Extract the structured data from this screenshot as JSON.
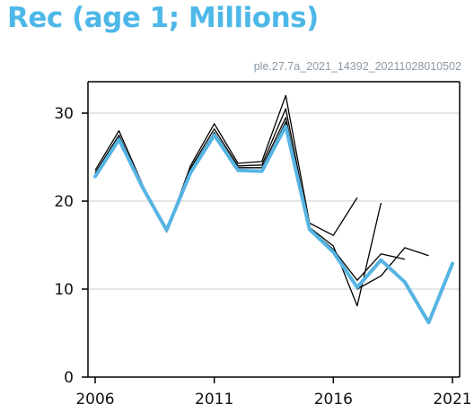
{
  "page": {
    "title": "Rec (age 1; Millions)",
    "subtitle": "ple.27.7a_2021_14392_20211028010502"
  },
  "colors": {
    "title": "#4db8e8",
    "subtitle": "#8b9aa6",
    "main_line": "#56b4e3",
    "retro_lines": "#000000",
    "grid": "#cccccc",
    "axis": "#000000"
  },
  "chart_data": {
    "type": "line",
    "title": "Rec (age 1; Millions)",
    "annotation": "ple.27.7a_2021_14392_20211028010502",
    "xlim": [
      2006,
      2021
    ],
    "ylim": [
      0,
      32
    ],
    "x_ticks": [
      2006,
      2011,
      2016,
      2021
    ],
    "y_ticks": [
      0,
      10,
      20,
      30
    ],
    "grid": "horizontal",
    "main_series": {
      "x": [
        2006,
        2007,
        2008,
        2009,
        2010,
        2011,
        2012,
        2013,
        2014,
        2015,
        2016,
        2017,
        2018,
        2019,
        2020,
        2021
      ],
      "y": [
        22.8,
        27.0,
        21.5,
        16.7,
        23.2,
        27.5,
        23.5,
        23.4,
        28.5,
        16.8,
        14.2,
        10.2,
        13.3,
        10.8,
        6.2,
        12.9
      ]
    },
    "retro_series": [
      {
        "x": [
          2006,
          2007,
          2008,
          2009,
          2010,
          2011,
          2012,
          2013,
          2014,
          2015,
          2016,
          2017
        ],
        "y": [
          23.5,
          28.0,
          21.8,
          16.5,
          24.0,
          28.8,
          24.3,
          24.5,
          32.0,
          17.5,
          16.1,
          20.4
        ]
      },
      {
        "x": [
          2006,
          2007,
          2008,
          2009,
          2010,
          2011,
          2012,
          2013,
          2014,
          2015,
          2016,
          2017,
          2018
        ],
        "y": [
          23.2,
          27.5,
          21.7,
          16.9,
          23.7,
          28.2,
          24.0,
          24.1,
          30.5,
          17.0,
          14.9,
          8.1,
          19.8
        ]
      },
      {
        "x": [
          2006,
          2007,
          2008,
          2009,
          2010,
          2011,
          2012,
          2013,
          2014,
          2015,
          2016,
          2017,
          2018,
          2019
        ],
        "y": [
          23.0,
          27.2,
          21.6,
          16.8,
          23.5,
          27.8,
          23.8,
          23.8,
          29.5,
          16.9,
          14.5,
          11.0,
          14.0,
          13.4
        ]
      },
      {
        "x": [
          2006,
          2007,
          2008,
          2009,
          2010,
          2011,
          2012,
          2013,
          2014,
          2015,
          2016,
          2017,
          2018,
          2019,
          2020
        ],
        "y": [
          22.9,
          27.1,
          21.5,
          16.7,
          23.3,
          27.6,
          23.6,
          23.5,
          29.0,
          16.8,
          14.3,
          10.0,
          11.5,
          14.7,
          13.8
        ]
      }
    ]
  }
}
